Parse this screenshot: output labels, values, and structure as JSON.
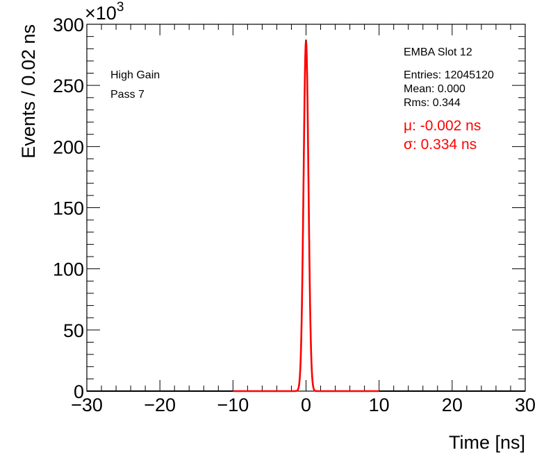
{
  "chart_data": {
    "type": "line",
    "xlabel": "Time [ns]",
    "ylabel": "Events / 0.02 ns",
    "y_multiplier_prefix": "×10",
    "y_multiplier_exp": "3",
    "xlim": [
      -30,
      30
    ],
    "ylim": [
      0,
      300
    ],
    "x_ticks": [
      -30,
      -20,
      -10,
      0,
      10,
      20,
      30
    ],
    "x_tick_labels": [
      "−30",
      "−20",
      "−10",
      "0",
      "10",
      "20",
      "30"
    ],
    "y_ticks": [
      0,
      50,
      100,
      150,
      200,
      250,
      300
    ],
    "y_tick_labels": [
      "0",
      "50",
      "100",
      "150",
      "200",
      "250",
      "300"
    ],
    "annotations_left": [
      "High Gain",
      "Pass 7"
    ],
    "stats_title": "EMBA Slot 12",
    "stats_lines": [
      "Entries: 12045120",
      "Mean: 0.000",
      "Rms: 0.344"
    ],
    "fit_lines": [
      "μ: -0.002 ns",
      "σ: 0.334 ns"
    ],
    "series": [
      {
        "kind": "histogram",
        "color": "#000000",
        "peak": 287,
        "mean": 0.0,
        "sigma": 0.334,
        "x_range": [
          -30,
          30
        ]
      },
      {
        "kind": "gaussian-fit",
        "color": "#ff0000",
        "peak": 286,
        "mean": -0.002,
        "sigma": 0.334,
        "x_range": [
          -10,
          10
        ]
      }
    ]
  }
}
